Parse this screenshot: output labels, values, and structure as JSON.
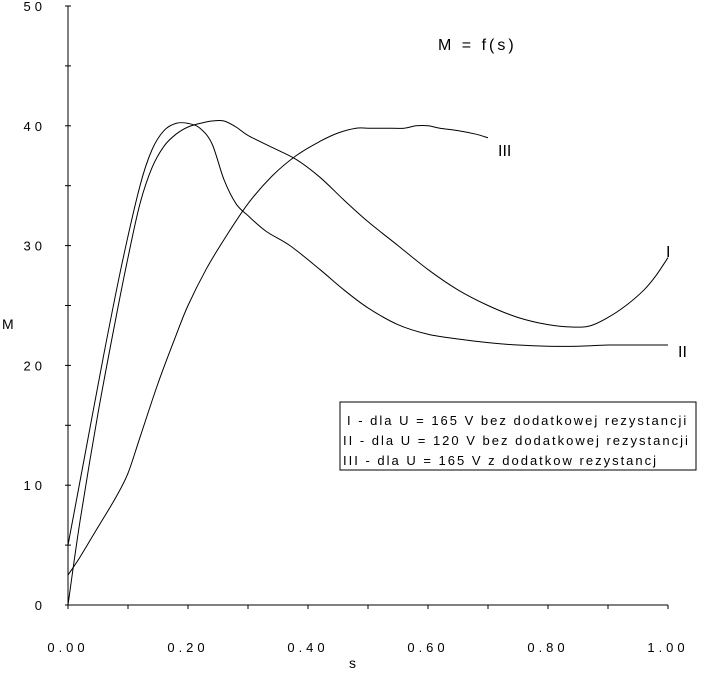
{
  "chart_data": {
    "type": "line",
    "title": "M  = f(s)",
    "xlabel": "s",
    "ylabel": "M",
    "xlim": [
      0,
      1.0
    ],
    "ylim": [
      0,
      50
    ],
    "x_ticks": [
      "0.00",
      "0.20",
      "0.40",
      "0.60",
      "0.80",
      "1.00"
    ],
    "y_ticks": [
      "0",
      "10",
      "20",
      "30",
      "40",
      "50"
    ],
    "grid": false,
    "legend_position": "right",
    "legend": [
      "I - dla U = 165 V bez dodatkowej rezystancji",
      "II - dla U = 120 V bez dodatkowej rezystancji",
      "III - dla U = 165 V z dodatkow  rezystancj"
    ],
    "series": [
      {
        "name": "I",
        "x": [
          0.0,
          0.02,
          0.05,
          0.08,
          0.1,
          0.12,
          0.14,
          0.16,
          0.18,
          0.2,
          0.22,
          0.24,
          0.26,
          0.28,
          0.3,
          0.34,
          0.38,
          0.42,
          0.46,
          0.5,
          0.55,
          0.6,
          0.65,
          0.7,
          0.75,
          0.8,
          0.84,
          0.87,
          0.9,
          0.93,
          0.96,
          0.98,
          1.0
        ],
        "y": [
          0.0,
          7.0,
          16.0,
          24.0,
          29.0,
          33.5,
          36.5,
          38.3,
          39.3,
          39.9,
          40.2,
          40.4,
          40.4,
          39.9,
          39.2,
          38.2,
          37.2,
          35.7,
          33.8,
          32.0,
          30.0,
          28.0,
          26.3,
          25.0,
          24.0,
          23.4,
          23.2,
          23.3,
          24.0,
          25.0,
          26.3,
          27.5,
          29.0
        ]
      },
      {
        "name": "II",
        "x": [
          0.0,
          0.03,
          0.06,
          0.09,
          0.12,
          0.14,
          0.16,
          0.18,
          0.2,
          0.22,
          0.24,
          0.26,
          0.28,
          0.3,
          0.33,
          0.37,
          0.42,
          0.46,
          0.5,
          0.55,
          0.6,
          0.65,
          0.7,
          0.75,
          0.8,
          0.85,
          0.9,
          0.95,
          1.0
        ],
        "y": [
          5.0,
          13.0,
          21.0,
          28.5,
          35.0,
          38.0,
          39.6,
          40.2,
          40.2,
          39.8,
          38.5,
          35.5,
          33.5,
          32.5,
          31.2,
          30.0,
          28.0,
          26.3,
          24.8,
          23.4,
          22.6,
          22.2,
          21.9,
          21.7,
          21.6,
          21.6,
          21.7,
          21.7,
          21.7
        ]
      },
      {
        "name": "III",
        "x": [
          0.0,
          0.02,
          0.05,
          0.08,
          0.1,
          0.12,
          0.15,
          0.18,
          0.2,
          0.23,
          0.26,
          0.3,
          0.34,
          0.38,
          0.42,
          0.45,
          0.48,
          0.5,
          0.53,
          0.56,
          0.58,
          0.6,
          0.62,
          0.65,
          0.68,
          0.7
        ],
        "y": [
          2.5,
          4.0,
          6.5,
          9.0,
          11.0,
          14.0,
          18.5,
          22.5,
          25.0,
          28.0,
          30.5,
          33.5,
          35.8,
          37.5,
          38.7,
          39.4,
          39.8,
          39.8,
          39.8,
          39.8,
          40.0,
          40.0,
          39.8,
          39.6,
          39.3,
          39.0
        ]
      }
    ]
  }
}
